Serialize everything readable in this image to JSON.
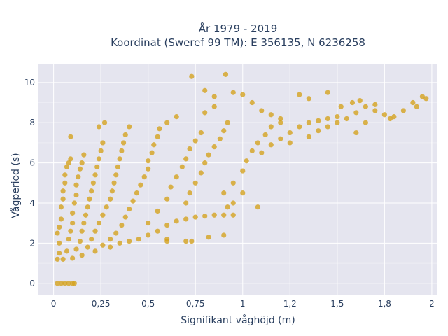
{
  "colors": {
    "background": "#ffffff",
    "plot_bg": "#e5e5ef",
    "grid": "#ffffff",
    "marker": "#d4a31f",
    "text": "#2a3f5f"
  },
  "chart_data": {
    "type": "scatter",
    "title_line1": "År 1979 - 2019",
    "title_line2": "Koordinat (Sweref 99 TM): E 356135, N 6236258",
    "xlabel": "Signifikant våghöjd (m)",
    "ylabel": "Vågperiod (s)",
    "xlim": [
      -0.08,
      2.03
    ],
    "ylim": [
      -0.6,
      10.9
    ],
    "grid": true,
    "x_ticks": [
      {
        "value": 0,
        "label": "0"
      },
      {
        "value": 0.25,
        "label": "0,25"
      },
      {
        "value": 0.5,
        "label": "0,5"
      },
      {
        "value": 0.75,
        "label": "0,75"
      },
      {
        "value": 1.0,
        "label": "1"
      },
      {
        "value": 1.25,
        "label": "1,2"
      },
      {
        "value": 1.5,
        "label": "1,5"
      },
      {
        "value": 1.75,
        "label": "1,8"
      },
      {
        "value": 2.0,
        "label": "2"
      }
    ],
    "y_ticks": [
      {
        "value": 0,
        "label": "0"
      },
      {
        "value": 2,
        "label": "2"
      },
      {
        "value": 4,
        "label": "4"
      },
      {
        "value": 6,
        "label": "6"
      },
      {
        "value": 8,
        "label": "8"
      },
      {
        "value": 10,
        "label": "10"
      }
    ],
    "series": [
      {
        "points": [
          [
            0.02,
            0.0
          ],
          [
            0.04,
            0.0
          ],
          [
            0.06,
            0.0
          ],
          [
            0.08,
            0.0
          ],
          [
            0.1,
            0.0
          ],
          [
            0.11,
            0.0
          ],
          [
            0.02,
            1.2
          ],
          [
            0.03,
            1.5
          ],
          [
            0.03,
            2.0
          ],
          [
            0.02,
            2.5
          ],
          [
            0.03,
            2.8
          ],
          [
            0.04,
            3.2
          ],
          [
            0.04,
            3.8
          ],
          [
            0.05,
            4.2
          ],
          [
            0.05,
            4.6
          ],
          [
            0.06,
            5.0
          ],
          [
            0.06,
            5.4
          ],
          [
            0.07,
            5.8
          ],
          [
            0.08,
            6.0
          ],
          [
            0.09,
            6.2
          ],
          [
            0.09,
            7.3
          ],
          [
            0.05,
            1.2
          ],
          [
            0.07,
            1.6
          ],
          [
            0.08,
            2.2
          ],
          [
            0.09,
            2.6
          ],
          [
            0.1,
            3.0
          ],
          [
            0.1,
            3.5
          ],
          [
            0.11,
            4.0
          ],
          [
            0.12,
            4.4
          ],
          [
            0.12,
            4.9
          ],
          [
            0.13,
            5.3
          ],
          [
            0.14,
            5.7
          ],
          [
            0.15,
            6.0
          ],
          [
            0.16,
            6.4
          ],
          [
            0.1,
            1.25
          ],
          [
            0.12,
            1.7
          ],
          [
            0.14,
            2.1
          ],
          [
            0.15,
            2.6
          ],
          [
            0.16,
            3.0
          ],
          [
            0.17,
            3.4
          ],
          [
            0.18,
            3.8
          ],
          [
            0.19,
            4.2
          ],
          [
            0.2,
            4.6
          ],
          [
            0.21,
            5.0
          ],
          [
            0.22,
            5.4
          ],
          [
            0.23,
            5.8
          ],
          [
            0.24,
            6.2
          ],
          [
            0.25,
            6.6
          ],
          [
            0.26,
            7.0
          ],
          [
            0.24,
            7.8
          ],
          [
            0.27,
            8.0
          ],
          [
            0.15,
            1.4
          ],
          [
            0.18,
            1.8
          ],
          [
            0.2,
            2.2
          ],
          [
            0.22,
            2.6
          ],
          [
            0.24,
            3.0
          ],
          [
            0.26,
            3.4
          ],
          [
            0.28,
            3.8
          ],
          [
            0.3,
            4.2
          ],
          [
            0.31,
            4.6
          ],
          [
            0.32,
            5.0
          ],
          [
            0.33,
            5.4
          ],
          [
            0.34,
            5.8
          ],
          [
            0.35,
            6.2
          ],
          [
            0.36,
            6.6
          ],
          [
            0.37,
            7.0
          ],
          [
            0.38,
            7.4
          ],
          [
            0.4,
            7.8
          ],
          [
            0.22,
            1.6
          ],
          [
            0.26,
            1.9
          ],
          [
            0.3,
            2.2
          ],
          [
            0.33,
            2.5
          ],
          [
            0.36,
            2.9
          ],
          [
            0.38,
            3.3
          ],
          [
            0.4,
            3.7
          ],
          [
            0.42,
            4.1
          ],
          [
            0.44,
            4.5
          ],
          [
            0.46,
            4.9
          ],
          [
            0.48,
            5.3
          ],
          [
            0.5,
            5.7
          ],
          [
            0.5,
            6.1
          ],
          [
            0.52,
            6.5
          ],
          [
            0.53,
            6.9
          ],
          [
            0.55,
            7.3
          ],
          [
            0.56,
            7.7
          ],
          [
            0.3,
            1.8
          ],
          [
            0.35,
            2.0
          ],
          [
            0.4,
            2.1
          ],
          [
            0.45,
            2.2
          ],
          [
            0.5,
            2.4
          ],
          [
            0.55,
            2.6
          ],
          [
            0.6,
            2.9
          ],
          [
            0.65,
            3.1
          ],
          [
            0.7,
            3.2
          ],
          [
            0.75,
            3.3
          ],
          [
            0.8,
            3.35
          ],
          [
            0.85,
            3.4
          ],
          [
            0.9,
            3.4
          ],
          [
            0.95,
            3.4
          ],
          [
            0.6,
            2.1
          ],
          [
            0.7,
            2.1
          ],
          [
            0.5,
            3.0
          ],
          [
            0.55,
            3.6
          ],
          [
            0.6,
            4.2
          ],
          [
            0.62,
            4.8
          ],
          [
            0.65,
            5.3
          ],
          [
            0.68,
            5.8
          ],
          [
            0.7,
            6.2
          ],
          [
            0.72,
            6.7
          ],
          [
            0.75,
            7.1
          ],
          [
            0.78,
            7.5
          ],
          [
            0.6,
            8.0
          ],
          [
            0.65,
            8.3
          ],
          [
            0.7,
            4.0
          ],
          [
            0.72,
            4.5
          ],
          [
            0.75,
            5.0
          ],
          [
            0.78,
            5.5
          ],
          [
            0.8,
            6.0
          ],
          [
            0.82,
            6.4
          ],
          [
            0.85,
            6.8
          ],
          [
            0.88,
            7.2
          ],
          [
            0.9,
            7.6
          ],
          [
            0.92,
            8.0
          ],
          [
            0.8,
            8.5
          ],
          [
            0.85,
            8.8
          ],
          [
            0.73,
            10.3
          ],
          [
            0.8,
            9.6
          ],
          [
            0.85,
            9.3
          ],
          [
            0.91,
            10.4
          ],
          [
            0.95,
            9.5
          ],
          [
            1.0,
            9.4
          ],
          [
            1.05,
            9.0
          ],
          [
            1.1,
            8.6
          ],
          [
            1.15,
            8.4
          ],
          [
            1.2,
            8.2
          ],
          [
            0.9,
            4.5
          ],
          [
            0.95,
            5.0
          ],
          [
            1.0,
            5.6
          ],
          [
            1.02,
            6.1
          ],
          [
            1.05,
            6.6
          ],
          [
            1.08,
            7.0
          ],
          [
            1.12,
            7.4
          ],
          [
            1.15,
            7.8
          ],
          [
            1.2,
            8.0
          ],
          [
            1.1,
            6.5
          ],
          [
            1.15,
            6.9
          ],
          [
            1.2,
            7.2
          ],
          [
            1.25,
            7.5
          ],
          [
            1.3,
            7.8
          ],
          [
            1.35,
            8.0
          ],
          [
            1.4,
            8.1
          ],
          [
            1.45,
            8.2
          ],
          [
            1.5,
            8.3
          ],
          [
            1.3,
            9.4
          ],
          [
            1.35,
            9.2
          ],
          [
            1.45,
            9.5
          ],
          [
            1.25,
            7.0
          ],
          [
            1.35,
            7.3
          ],
          [
            1.4,
            7.6
          ],
          [
            1.45,
            7.8
          ],
          [
            1.5,
            8.0
          ],
          [
            1.55,
            8.2
          ],
          [
            1.6,
            8.5
          ],
          [
            1.65,
            8.8
          ],
          [
            1.7,
            8.6
          ],
          [
            1.75,
            8.4
          ],
          [
            1.8,
            8.3
          ],
          [
            1.85,
            8.6
          ],
          [
            1.9,
            9.0
          ],
          [
            1.95,
            9.3
          ],
          [
            1.97,
            9.2
          ],
          [
            1.52,
            8.8
          ],
          [
            1.58,
            9.0
          ],
          [
            1.62,
            9.1
          ],
          [
            1.7,
            8.9
          ],
          [
            1.78,
            8.2
          ],
          [
            1.92,
            8.8
          ],
          [
            1.6,
            7.5
          ],
          [
            1.65,
            8.0
          ],
          [
            0.6,
            2.2
          ],
          [
            0.73,
            2.1
          ],
          [
            0.82,
            2.3
          ],
          [
            0.9,
            2.4
          ],
          [
            1.08,
            3.8
          ],
          [
            1.0,
            4.5
          ],
          [
            0.95,
            4.0
          ],
          [
            0.92,
            3.8
          ]
        ]
      }
    ]
  }
}
